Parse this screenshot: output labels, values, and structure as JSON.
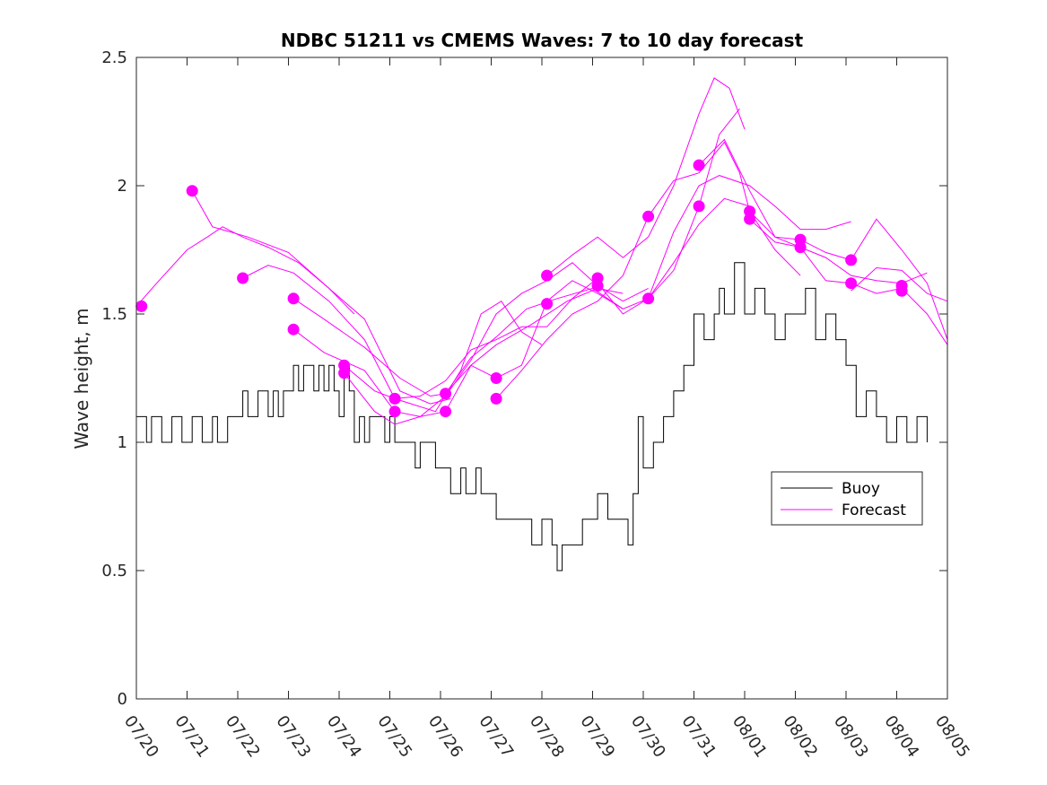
{
  "chart_data": {
    "type": "line",
    "title": "NDBC 51211 vs CMEMS Waves: 7 to 10 day forecast",
    "xlabel": "",
    "ylabel": "Wave height, m",
    "xlim": [
      0,
      16
    ],
    "ylim": [
      0,
      2.5
    ],
    "x_ticks": [
      "07/20",
      "07/21",
      "07/22",
      "07/23",
      "07/24",
      "07/25",
      "07/26",
      "07/27",
      "07/28",
      "07/29",
      "07/30",
      "07/31",
      "08/01",
      "08/02",
      "08/03",
      "08/04",
      "08/05"
    ],
    "y_ticks": [
      {
        "value": 0,
        "label": "0"
      },
      {
        "value": 0.5,
        "label": "0.5"
      },
      {
        "value": 1,
        "label": "1"
      },
      {
        "value": 1.5,
        "label": "1.5"
      },
      {
        "value": 2,
        "label": "2"
      },
      {
        "value": 2.5,
        "label": "2.5"
      }
    ],
    "x_unit": "days since 07/20",
    "legend": {
      "position": "right",
      "entries": [
        "Buoy",
        "Forecast"
      ]
    },
    "colors": {
      "buoy": "#000000",
      "forecast": "#ff00ff"
    },
    "series": [
      {
        "name": "Buoy",
        "style": "step",
        "points": [
          [
            0,
            1.1
          ],
          [
            0.2,
            1.0
          ],
          [
            0.3,
            1.1
          ],
          [
            0.5,
            1.0
          ],
          [
            0.7,
            1.1
          ],
          [
            0.9,
            1.0
          ],
          [
            1.1,
            1.1
          ],
          [
            1.3,
            1.0
          ],
          [
            1.5,
            1.1
          ],
          [
            1.6,
            1.0
          ],
          [
            1.8,
            1.1
          ],
          [
            1.9,
            1.1
          ],
          [
            2.0,
            1.1
          ],
          [
            2.1,
            1.2
          ],
          [
            2.2,
            1.1
          ],
          [
            2.4,
            1.2
          ],
          [
            2.6,
            1.1
          ],
          [
            2.7,
            1.2
          ],
          [
            2.8,
            1.1
          ],
          [
            2.9,
            1.2
          ],
          [
            3.0,
            1.2
          ],
          [
            3.1,
            1.3
          ],
          [
            3.2,
            1.2
          ],
          [
            3.3,
            1.3
          ],
          [
            3.4,
            1.3
          ],
          [
            3.5,
            1.2
          ],
          [
            3.6,
            1.3
          ],
          [
            3.7,
            1.2
          ],
          [
            3.8,
            1.3
          ],
          [
            3.9,
            1.2
          ],
          [
            4.0,
            1.1
          ],
          [
            4.1,
            1.3
          ],
          [
            4.2,
            1.2
          ],
          [
            4.3,
            1.0
          ],
          [
            4.4,
            1.1
          ],
          [
            4.5,
            1.0
          ],
          [
            4.6,
            1.1
          ],
          [
            4.8,
            1.1
          ],
          [
            4.9,
            1.0
          ],
          [
            5.0,
            1.1
          ],
          [
            5.1,
            1.0
          ],
          [
            5.2,
            1.0
          ],
          [
            5.4,
            1.0
          ],
          [
            5.5,
            0.9
          ],
          [
            5.6,
            1.0
          ],
          [
            5.8,
            1.0
          ],
          [
            5.9,
            0.9
          ],
          [
            6.1,
            0.9
          ],
          [
            6.2,
            0.8
          ],
          [
            6.4,
            0.9
          ],
          [
            6.5,
            0.8
          ],
          [
            6.7,
            0.9
          ],
          [
            6.8,
            0.8
          ],
          [
            7.0,
            0.8
          ],
          [
            7.1,
            0.7
          ],
          [
            7.3,
            0.7
          ],
          [
            7.5,
            0.7
          ],
          [
            7.8,
            0.6
          ],
          [
            8.0,
            0.7
          ],
          [
            8.2,
            0.6
          ],
          [
            8.3,
            0.5
          ],
          [
            8.4,
            0.6
          ],
          [
            8.6,
            0.6
          ],
          [
            8.8,
            0.7
          ],
          [
            9.0,
            0.7
          ],
          [
            9.1,
            0.8
          ],
          [
            9.3,
            0.7
          ],
          [
            9.5,
            0.7
          ],
          [
            9.7,
            0.6
          ],
          [
            9.8,
            0.8
          ],
          [
            9.9,
            1.1
          ],
          [
            10.0,
            0.9
          ],
          [
            10.2,
            1.0
          ],
          [
            10.4,
            1.1
          ],
          [
            10.6,
            1.2
          ],
          [
            10.8,
            1.3
          ],
          [
            11.0,
            1.5
          ],
          [
            11.2,
            1.4
          ],
          [
            11.4,
            1.5
          ],
          [
            11.5,
            1.6
          ],
          [
            11.6,
            1.5
          ],
          [
            11.8,
            1.7
          ],
          [
            12.0,
            1.5
          ],
          [
            12.2,
            1.6
          ],
          [
            12.4,
            1.5
          ],
          [
            12.6,
            1.4
          ],
          [
            12.8,
            1.5
          ],
          [
            13.0,
            1.5
          ],
          [
            13.2,
            1.6
          ],
          [
            13.4,
            1.4
          ],
          [
            13.6,
            1.5
          ],
          [
            13.8,
            1.4
          ],
          [
            14.0,
            1.3
          ],
          [
            14.2,
            1.1
          ],
          [
            14.4,
            1.2
          ],
          [
            14.6,
            1.1
          ],
          [
            14.8,
            1.0
          ],
          [
            15.0,
            1.1
          ],
          [
            15.2,
            1.0
          ],
          [
            15.4,
            1.1
          ],
          [
            15.6,
            1.0
          ]
        ]
      },
      {
        "name": "Forecast",
        "style": "line",
        "points": [
          [
            0,
            1.53
          ],
          [
            0.4,
            1.62
          ],
          [
            1.0,
            1.75
          ],
          [
            1.4,
            1.8
          ],
          [
            1.7,
            1.84
          ],
          [
            2.1,
            1.8
          ],
          [
            2.6,
            1.76
          ],
          [
            3.2,
            1.7
          ],
          [
            3.8,
            1.6
          ],
          [
            4.3,
            1.5
          ]
        ]
      },
      {
        "name": "Forecast",
        "style": "line",
        "points": [
          [
            1.1,
            1.98
          ],
          [
            1.5,
            1.84
          ],
          [
            2.2,
            1.8
          ],
          [
            3.0,
            1.74
          ],
          [
            3.8,
            1.6
          ],
          [
            4.5,
            1.48
          ],
          [
            5.2,
            1.2
          ],
          [
            5.8,
            1.15
          ],
          [
            6.2,
            1.17
          ]
        ]
      },
      {
        "name": "Forecast",
        "style": "line",
        "points": [
          [
            2.1,
            1.64
          ],
          [
            2.6,
            1.69
          ],
          [
            3.1,
            1.66
          ],
          [
            3.8,
            1.55
          ],
          [
            4.5,
            1.4
          ],
          [
            5.1,
            1.17
          ],
          [
            5.9,
            1.12
          ],
          [
            6.4,
            1.28
          ],
          [
            6.8,
            1.5
          ],
          [
            7.2,
            1.55
          ],
          [
            7.6,
            1.43
          ],
          [
            8.0,
            1.38
          ]
        ]
      },
      {
        "name": "Forecast",
        "style": "line",
        "points": [
          [
            3.1,
            1.56
          ],
          [
            3.7,
            1.48
          ],
          [
            4.5,
            1.37
          ],
          [
            5.2,
            1.25
          ],
          [
            5.8,
            1.18
          ],
          [
            6.1,
            1.19
          ],
          [
            6.6,
            1.33
          ],
          [
            7.1,
            1.41
          ],
          [
            7.7,
            1.52
          ],
          [
            8.3,
            1.56
          ],
          [
            9.0,
            1.6
          ],
          [
            9.6,
            1.52
          ]
        ]
      },
      {
        "name": "Forecast",
        "style": "line",
        "points": [
          [
            3.1,
            1.44
          ],
          [
            3.7,
            1.35
          ],
          [
            4.5,
            1.28
          ],
          [
            5.1,
            1.12
          ],
          [
            5.6,
            1.1
          ],
          [
            6.1,
            1.12
          ],
          [
            6.6,
            1.3
          ],
          [
            7.1,
            1.38
          ],
          [
            7.8,
            1.46
          ],
          [
            8.5,
            1.55
          ],
          [
            9.1,
            1.6
          ],
          [
            9.6,
            1.58
          ]
        ]
      },
      {
        "name": "Forecast",
        "style": "line",
        "points": [
          [
            4.1,
            1.3
          ],
          [
            4.7,
            1.2
          ],
          [
            5.1,
            1.17
          ],
          [
            5.6,
            1.18
          ],
          [
            6.1,
            1.24
          ],
          [
            6.6,
            1.36
          ],
          [
            7.1,
            1.4
          ],
          [
            7.6,
            1.45
          ],
          [
            8.1,
            1.45
          ],
          [
            8.6,
            1.56
          ],
          [
            9.1,
            1.64
          ]
        ]
      },
      {
        "name": "Forecast",
        "style": "line",
        "points": [
          [
            4.1,
            1.27
          ],
          [
            4.7,
            1.12
          ],
          [
            5.1,
            1.07
          ],
          [
            5.6,
            1.1
          ],
          [
            6.1,
            1.18
          ],
          [
            6.6,
            1.32
          ],
          [
            7.1,
            1.5
          ],
          [
            7.6,
            1.58
          ],
          [
            8.1,
            1.63
          ],
          [
            8.6,
            1.7
          ],
          [
            9.1,
            1.61
          ],
          [
            9.6,
            1.55
          ],
          [
            10.1,
            1.6
          ]
        ]
      },
      {
        "name": "Forecast",
        "style": "line",
        "points": [
          [
            6.1,
            1.19
          ],
          [
            6.6,
            1.3
          ],
          [
            7.1,
            1.25
          ],
          [
            7.6,
            1.3
          ],
          [
            8.1,
            1.55
          ],
          [
            8.6,
            1.63
          ],
          [
            9.1,
            1.58
          ],
          [
            9.6,
            1.52
          ],
          [
            10.1,
            1.56
          ],
          [
            10.6,
            1.7
          ],
          [
            11.1,
            1.85
          ],
          [
            11.6,
            1.95
          ],
          [
            12.1,
            1.92
          ]
        ]
      },
      {
        "name": "Forecast",
        "style": "line",
        "points": [
          [
            7.1,
            1.17
          ],
          [
            7.6,
            1.28
          ],
          [
            8.1,
            1.4
          ],
          [
            8.6,
            1.5
          ],
          [
            9.1,
            1.55
          ],
          [
            9.6,
            1.65
          ],
          [
            10.1,
            1.88
          ],
          [
            10.6,
            2.02
          ],
          [
            11.1,
            2.05
          ],
          [
            11.6,
            2.17
          ],
          [
            11.9,
            2.05
          ],
          [
            12.1,
            1.9
          ],
          [
            12.6,
            1.75
          ],
          [
            13.1,
            1.65
          ]
        ]
      },
      {
        "name": "Forecast",
        "style": "line",
        "points": [
          [
            8.1,
            1.65
          ],
          [
            8.6,
            1.73
          ],
          [
            9.1,
            1.8
          ],
          [
            9.6,
            1.72
          ],
          [
            10.1,
            1.8
          ],
          [
            10.6,
            2.0
          ],
          [
            11.1,
            2.28
          ],
          [
            11.4,
            2.42
          ],
          [
            11.7,
            2.38
          ],
          [
            12.0,
            2.22
          ]
        ]
      },
      {
        "name": "Forecast",
        "style": "line",
        "points": [
          [
            9.1,
            1.62
          ],
          [
            9.6,
            1.5
          ],
          [
            10.1,
            1.56
          ],
          [
            10.6,
            1.82
          ],
          [
            11.1,
            2.0
          ],
          [
            11.5,
            2.04
          ],
          [
            12.1,
            2.0
          ],
          [
            12.6,
            1.92
          ],
          [
            13.1,
            1.83
          ],
          [
            13.6,
            1.83
          ],
          [
            14.1,
            1.86
          ]
        ]
      },
      {
        "name": "Forecast",
        "style": "line",
        "points": [
          [
            10.1,
            1.56
          ],
          [
            10.6,
            1.67
          ],
          [
            11.1,
            1.92
          ],
          [
            11.5,
            2.2
          ],
          [
            11.9,
            2.3
          ]
        ]
      },
      {
        "name": "Forecast",
        "style": "line",
        "points": [
          [
            11.1,
            2.08
          ],
          [
            11.6,
            2.18
          ],
          [
            12.1,
            1.98
          ],
          [
            12.6,
            1.8
          ],
          [
            13.1,
            1.76
          ],
          [
            13.6,
            1.72
          ],
          [
            14.1,
            1.65
          ],
          [
            14.6,
            1.63
          ],
          [
            15.1,
            1.62
          ],
          [
            15.6,
            1.66
          ]
        ]
      },
      {
        "name": "Forecast",
        "style": "line",
        "points": [
          [
            12.1,
            1.9
          ],
          [
            12.6,
            1.8
          ],
          [
            13.1,
            1.79
          ],
          [
            13.6,
            1.74
          ],
          [
            14.1,
            1.71
          ],
          [
            14.6,
            1.87
          ],
          [
            15.1,
            1.75
          ],
          [
            15.6,
            1.62
          ],
          [
            16,
            1.4
          ]
        ]
      },
      {
        "name": "Forecast",
        "style": "line",
        "points": [
          [
            12.1,
            1.87
          ],
          [
            12.6,
            1.78
          ],
          [
            13.1,
            1.76
          ],
          [
            13.6,
            1.63
          ],
          [
            14.1,
            1.62
          ],
          [
            14.6,
            1.58
          ],
          [
            15.1,
            1.6
          ],
          [
            15.6,
            1.5
          ],
          [
            16,
            1.38
          ]
        ]
      },
      {
        "name": "Forecast",
        "style": "line",
        "points": [
          [
            14.1,
            1.59
          ],
          [
            14.6,
            1.68
          ],
          [
            15.1,
            1.67
          ],
          [
            15.6,
            1.58
          ],
          [
            16,
            1.55
          ]
        ]
      }
    ],
    "markers": [
      [
        0.1,
        1.53
      ],
      [
        1.1,
        1.98
      ],
      [
        2.1,
        1.64
      ],
      [
        3.1,
        1.56
      ],
      [
        3.1,
        1.44
      ],
      [
        4.1,
        1.3
      ],
      [
        4.1,
        1.27
      ],
      [
        5.1,
        1.17
      ],
      [
        5.1,
        1.12
      ],
      [
        6.1,
        1.19
      ],
      [
        6.1,
        1.12
      ],
      [
        7.1,
        1.25
      ],
      [
        7.1,
        1.17
      ],
      [
        8.1,
        1.65
      ],
      [
        8.1,
        1.54
      ],
      [
        9.1,
        1.64
      ],
      [
        9.1,
        1.61
      ],
      [
        10.1,
        1.88
      ],
      [
        10.1,
        1.56
      ],
      [
        11.1,
        2.08
      ],
      [
        11.1,
        1.92
      ],
      [
        12.1,
        1.9
      ],
      [
        12.1,
        1.87
      ],
      [
        13.1,
        1.79
      ],
      [
        13.1,
        1.76
      ],
      [
        14.1,
        1.71
      ],
      [
        14.1,
        1.62
      ],
      [
        15.1,
        1.61
      ],
      [
        15.1,
        1.59
      ]
    ]
  }
}
